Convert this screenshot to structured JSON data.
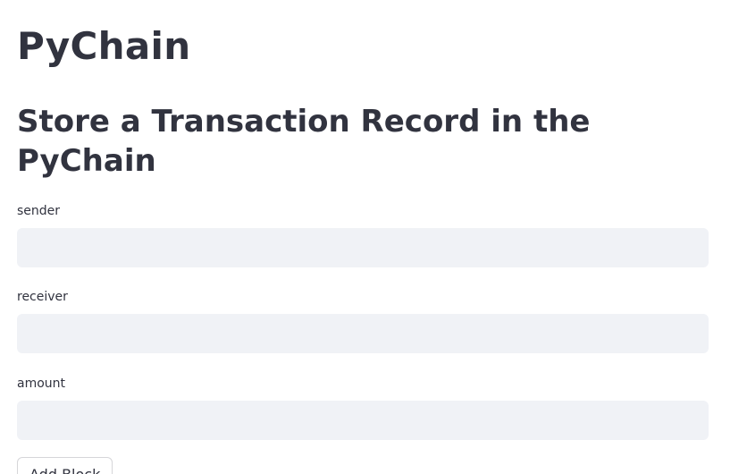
{
  "page": {
    "title": "PyChain",
    "subtitle": "Store a Transaction Record in the PyChain"
  },
  "form": {
    "sender": {
      "label": "sender",
      "value": ""
    },
    "receiver": {
      "label": "receiver",
      "value": ""
    },
    "amount": {
      "label": "amount",
      "value": ""
    },
    "submit_label": "Add Block"
  },
  "colors": {
    "text": "#31333f",
    "input_background": "#f0f2f6",
    "button_border": "#d6d6d9",
    "background": "#ffffff"
  }
}
